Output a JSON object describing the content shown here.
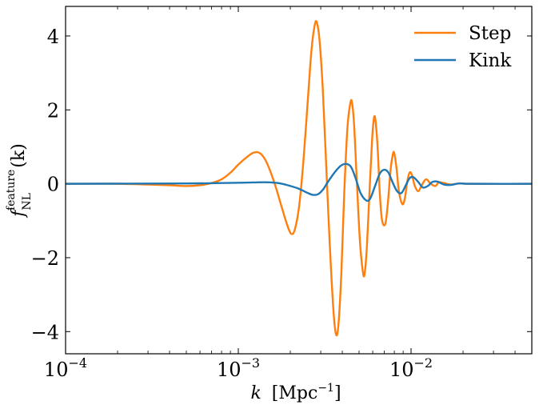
{
  "chart_data": {
    "type": "line",
    "xscale": "log",
    "xlim": [
      0.0001,
      0.05
    ],
    "ylim": [
      -4.6,
      4.8
    ],
    "xlabel": {
      "var": "k",
      "unit": "[Mpc",
      "unit_sup": "−1",
      "unit_close": "]"
    },
    "ylabel": {
      "var": "f",
      "sub": "NL",
      "sup": "feature",
      "arg": "(k)"
    },
    "x_ticks": [
      {
        "value": 0.0001,
        "base": "10",
        "exp": "−4"
      },
      {
        "value": 0.001,
        "base": "10",
        "exp": "−3"
      },
      {
        "value": 0.01,
        "base": "10",
        "exp": "−2"
      }
    ],
    "y_ticks": [
      {
        "value": -4,
        "label": "−4"
      },
      {
        "value": -2,
        "label": "−2"
      },
      {
        "value": 0,
        "label": "0"
      },
      {
        "value": 2,
        "label": "2"
      },
      {
        "value": 4,
        "label": "4"
      }
    ],
    "legend_position": "top-right",
    "series": [
      {
        "name": "Step",
        "color": "#ff7f0e",
        "points": [
          [
            0.0001,
            0
          ],
          [
            0.0002,
            0
          ],
          [
            0.0003,
            -0.02
          ],
          [
            0.0004,
            -0.04
          ],
          [
            0.0005,
            -0.06
          ],
          [
            0.0006,
            -0.04
          ],
          [
            0.0007,
            0.02
          ],
          [
            0.0008,
            0.12
          ],
          [
            0.0009,
            0.3
          ],
          [
            0.001,
            0.52
          ],
          [
            0.00112,
            0.72
          ],
          [
            0.00122,
            0.84
          ],
          [
            0.00132,
            0.84
          ],
          [
            0.00142,
            0.68
          ],
          [
            0.00152,
            0.38
          ],
          [
            0.00165,
            -0.1
          ],
          [
            0.00178,
            -0.62
          ],
          [
            0.00192,
            -1.12
          ],
          [
            0.00202,
            -1.35
          ],
          [
            0.00212,
            -1.25
          ],
          [
            0.00225,
            -0.6
          ],
          [
            0.00238,
            0.6
          ],
          [
            0.00252,
            2.2
          ],
          [
            0.00265,
            3.6
          ],
          [
            0.00277,
            4.3
          ],
          [
            0.00285,
            4.36
          ],
          [
            0.00295,
            3.9
          ],
          [
            0.00308,
            2.6
          ],
          [
            0.00322,
            0.6
          ],
          [
            0.00338,
            -1.6
          ],
          [
            0.00355,
            -3.4
          ],
          [
            0.00368,
            -4.08
          ],
          [
            0.0038,
            -3.8
          ],
          [
            0.00395,
            -2.4
          ],
          [
            0.0041,
            -0.3
          ],
          [
            0.00428,
            1.5
          ],
          [
            0.00445,
            2.18
          ],
          [
            0.00455,
            2.2
          ],
          [
            0.00468,
            1.6
          ],
          [
            0.00485,
            0.1
          ],
          [
            0.00505,
            -1.5
          ],
          [
            0.00525,
            -2.35
          ],
          [
            0.00538,
            -2.45
          ],
          [
            0.00555,
            -1.7
          ],
          [
            0.00575,
            -0.2
          ],
          [
            0.00595,
            1.2
          ],
          [
            0.0061,
            1.78
          ],
          [
            0.00622,
            1.72
          ],
          [
            0.0064,
            1.0
          ],
          [
            0.0066,
            -0.3
          ],
          [
            0.0068,
            -1.0
          ],
          [
            0.0071,
            -1.08
          ],
          [
            0.00735,
            -0.5
          ],
          [
            0.0076,
            0.35
          ],
          [
            0.00785,
            0.8
          ],
          [
            0.008,
            0.82
          ],
          [
            0.00825,
            0.4
          ],
          [
            0.0085,
            -0.2
          ],
          [
            0.0089,
            -0.55
          ],
          [
            0.0092,
            -0.4
          ],
          [
            0.0095,
            0.05
          ],
          [
            0.0098,
            0.3
          ],
          [
            0.0101,
            0.25
          ],
          [
            0.0105,
            -0.05
          ],
          [
            0.011,
            -0.2
          ],
          [
            0.0115,
            -0.05
          ],
          [
            0.0122,
            0.12
          ],
          [
            0.013,
            0.0
          ],
          [
            0.0138,
            -0.06
          ],
          [
            0.0145,
            0.04
          ],
          [
            0.0155,
            0.02
          ],
          [
            0.017,
            -0.02
          ],
          [
            0.019,
            0.01
          ],
          [
            0.022,
            0.0
          ],
          [
            0.05,
            0.0
          ]
        ]
      },
      {
        "name": "Kink",
        "color": "#1f77b4",
        "points": [
          [
            0.0001,
            0
          ],
          [
            0.0005,
            0.01
          ],
          [
            0.0008,
            0.02
          ],
          [
            0.0011,
            0.03
          ],
          [
            0.0013,
            0.04
          ],
          [
            0.0015,
            0.04
          ],
          [
            0.0017,
            0.02
          ],
          [
            0.0019,
            -0.03
          ],
          [
            0.0022,
            -0.12
          ],
          [
            0.0025,
            -0.24
          ],
          [
            0.0027,
            -0.3
          ],
          [
            0.0029,
            -0.28
          ],
          [
            0.0031,
            -0.15
          ],
          [
            0.0033,
            0.05
          ],
          [
            0.0036,
            0.3
          ],
          [
            0.0039,
            0.48
          ],
          [
            0.0042,
            0.54
          ],
          [
            0.0045,
            0.45
          ],
          [
            0.0048,
            0.12
          ],
          [
            0.0051,
            -0.25
          ],
          [
            0.0055,
            -0.45
          ],
          [
            0.0058,
            -0.4
          ],
          [
            0.0062,
            -0.05
          ],
          [
            0.0066,
            0.28
          ],
          [
            0.007,
            0.38
          ],
          [
            0.0074,
            0.3
          ],
          [
            0.0078,
            0.05
          ],
          [
            0.0083,
            -0.2
          ],
          [
            0.0088,
            -0.25
          ],
          [
            0.0093,
            -0.05
          ],
          [
            0.0098,
            0.15
          ],
          [
            0.0103,
            0.18
          ],
          [
            0.011,
            0.05
          ],
          [
            0.0117,
            -0.1
          ],
          [
            0.0125,
            -0.06
          ],
          [
            0.0133,
            0.05
          ],
          [
            0.0142,
            0.06
          ],
          [
            0.0155,
            -0.02
          ],
          [
            0.017,
            -0.03
          ],
          [
            0.019,
            0.01
          ],
          [
            0.022,
            0.0
          ],
          [
            0.05,
            0.0
          ]
        ]
      }
    ]
  }
}
